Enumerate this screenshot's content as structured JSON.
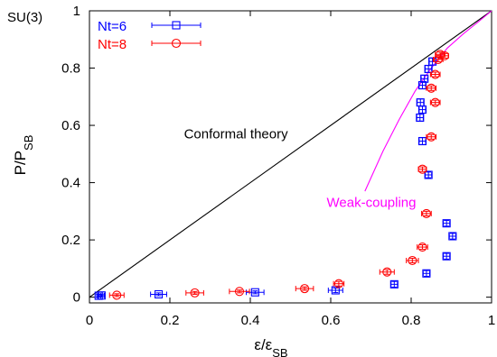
{
  "chart_data": {
    "type": "scatter",
    "title": "",
    "corner_label": "SU(3)",
    "xlabel": {
      "main": "ε/ε",
      "sub": "SB"
    },
    "ylabel": {
      "main": "P/P",
      "sub": "SB"
    },
    "xlim": [
      0,
      1
    ],
    "ylim": [
      -0.02,
      1
    ],
    "xticks": [
      "0",
      "0.2",
      "0.4",
      "0.6",
      "0.8",
      "1"
    ],
    "yticks": [
      "0",
      "0.2",
      "0.4",
      "0.6",
      "0.8",
      "1"
    ],
    "grid": false,
    "legend": "top-left",
    "colors": {
      "nt6": "#0000ff",
      "nt8": "#ff0000",
      "weak": "#ff00ff",
      "line": "#000000"
    },
    "series": [
      {
        "name": "Nt=6",
        "marker": "square",
        "points": [
          {
            "x": 0.023,
            "y": 0.005,
            "xerr": 0.005,
            "yerr": 0.005
          },
          {
            "x": 0.03,
            "y": 0.006,
            "xerr": 0.007,
            "yerr": 0.005
          },
          {
            "x": 0.172,
            "y": 0.01,
            "xerr": 0.02,
            "yerr": 0.005
          },
          {
            "x": 0.412,
            "y": 0.017,
            "xerr": 0.022,
            "yerr": 0.005
          },
          {
            "x": 0.612,
            "y": 0.024,
            "xerr": 0.018,
            "yerr": 0.008
          },
          {
            "x": 0.758,
            "y": 0.045,
            "xerr": 0.008,
            "yerr": 0.01
          },
          {
            "x": 0.838,
            "y": 0.083,
            "xerr": 0.008,
            "yerr": 0.01
          },
          {
            "x": 0.888,
            "y": 0.143,
            "xerr": 0.008,
            "yerr": 0.01
          },
          {
            "x": 0.903,
            "y": 0.213,
            "xerr": 0.008,
            "yerr": 0.01
          },
          {
            "x": 0.888,
            "y": 0.258,
            "xerr": 0.008,
            "yerr": 0.01
          },
          {
            "x": 0.843,
            "y": 0.427,
            "xerr": 0.008,
            "yerr": 0.01
          },
          {
            "x": 0.828,
            "y": 0.545,
            "xerr": 0.008,
            "yerr": 0.012
          },
          {
            "x": 0.822,
            "y": 0.627,
            "xerr": 0.008,
            "yerr": 0.012
          },
          {
            "x": 0.828,
            "y": 0.655,
            "xerr": 0.008,
            "yerr": 0.012
          },
          {
            "x": 0.823,
            "y": 0.68,
            "xerr": 0.008,
            "yerr": 0.012
          },
          {
            "x": 0.828,
            "y": 0.74,
            "xerr": 0.008,
            "yerr": 0.012
          },
          {
            "x": 0.833,
            "y": 0.763,
            "xerr": 0.008,
            "yerr": 0.012
          },
          {
            "x": 0.843,
            "y": 0.797,
            "xerr": 0.008,
            "yerr": 0.012
          },
          {
            "x": 0.853,
            "y": 0.823,
            "xerr": 0.008,
            "yerr": 0.012
          }
        ]
      },
      {
        "name": "Nt=8",
        "marker": "circle",
        "points": [
          {
            "x": 0.068,
            "y": 0.007,
            "xerr": 0.018,
            "yerr": 0.005
          },
          {
            "x": 0.262,
            "y": 0.015,
            "xerr": 0.022,
            "yerr": 0.005
          },
          {
            "x": 0.373,
            "y": 0.02,
            "xerr": 0.025,
            "yerr": 0.005
          },
          {
            "x": 0.535,
            "y": 0.03,
            "xerr": 0.022,
            "yerr": 0.006
          },
          {
            "x": 0.62,
            "y": 0.047,
            "xerr": 0.013,
            "yerr": 0.008
          },
          {
            "x": 0.74,
            "y": 0.088,
            "xerr": 0.018,
            "yerr": 0.008
          },
          {
            "x": 0.803,
            "y": 0.128,
            "xerr": 0.015,
            "yerr": 0.008
          },
          {
            "x": 0.828,
            "y": 0.175,
            "xerr": 0.013,
            "yerr": 0.008
          },
          {
            "x": 0.838,
            "y": 0.292,
            "xerr": 0.012,
            "yerr": 0.008
          },
          {
            "x": 0.828,
            "y": 0.447,
            "xerr": 0.01,
            "yerr": 0.008
          },
          {
            "x": 0.85,
            "y": 0.56,
            "xerr": 0.012,
            "yerr": 0.008
          },
          {
            "x": 0.86,
            "y": 0.68,
            "xerr": 0.012,
            "yerr": 0.008
          },
          {
            "x": 0.85,
            "y": 0.73,
            "xerr": 0.012,
            "yerr": 0.008
          },
          {
            "x": 0.86,
            "y": 0.778,
            "xerr": 0.012,
            "yerr": 0.008
          },
          {
            "x": 0.867,
            "y": 0.83,
            "xerr": 0.012,
            "yerr": 0.008
          },
          {
            "x": 0.872,
            "y": 0.848,
            "xerr": 0.012,
            "yerr": 0.008
          },
          {
            "x": 0.883,
            "y": 0.843,
            "xerr": 0.01,
            "yerr": 0.008
          }
        ]
      }
    ],
    "lines": [
      {
        "label": "Conformal theory",
        "points": [
          [
            0,
            0
          ],
          [
            1,
            1
          ]
        ]
      },
      {
        "label": "Weak-coupling",
        "points": [
          [
            0.685,
            0.37
          ],
          [
            0.73,
            0.51
          ],
          [
            0.77,
            0.62
          ],
          [
            0.81,
            0.72
          ],
          [
            0.85,
            0.8
          ],
          [
            0.89,
            0.87
          ],
          [
            0.93,
            0.92
          ],
          [
            0.97,
            0.965
          ],
          [
            1.0,
            1.0
          ]
        ]
      }
    ],
    "annotations": [
      {
        "text": "Conformal theory",
        "x": 0.235,
        "y": 0.555,
        "color": "line"
      },
      {
        "text": "Weak-coupling",
        "x": 0.59,
        "y": 0.315,
        "color": "weak"
      }
    ]
  }
}
